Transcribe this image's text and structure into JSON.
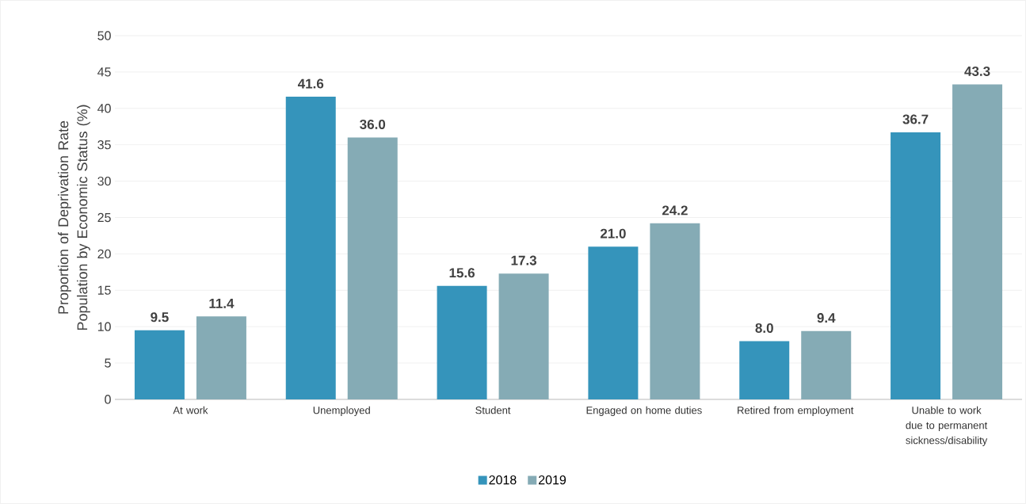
{
  "chart_data": {
    "type": "bar",
    "ylabel": "Proportion of Deprivation Rate Population by Economic Status (%)",
    "categories": [
      "At work",
      "Unemployed",
      "Student",
      "Engaged on home duties",
      "Retired from employment",
      "Unable to work due to permanent sickness/disability"
    ],
    "series": [
      {
        "name": "2018",
        "color": "#3594bb",
        "values": [
          9.5,
          41.6,
          15.6,
          21.0,
          8.0,
          36.7
        ],
        "value_labels": [
          "9.5",
          "41.6",
          "15.6",
          "21.0",
          "8.0",
          "36.7"
        ]
      },
      {
        "name": "2019",
        "color": "#85abb5",
        "values": [
          11.4,
          36.0,
          17.3,
          24.2,
          9.4,
          43.3
        ],
        "value_labels": [
          "11.4",
          "36.0",
          "17.3",
          "24.2",
          "9.4",
          "43.3"
        ]
      }
    ],
    "ylim": [
      0,
      50
    ],
    "yticks": [
      0,
      5,
      10,
      15,
      20,
      25,
      30,
      35,
      40,
      45,
      50
    ],
    "grid": "y",
    "legend": "bottom"
  }
}
